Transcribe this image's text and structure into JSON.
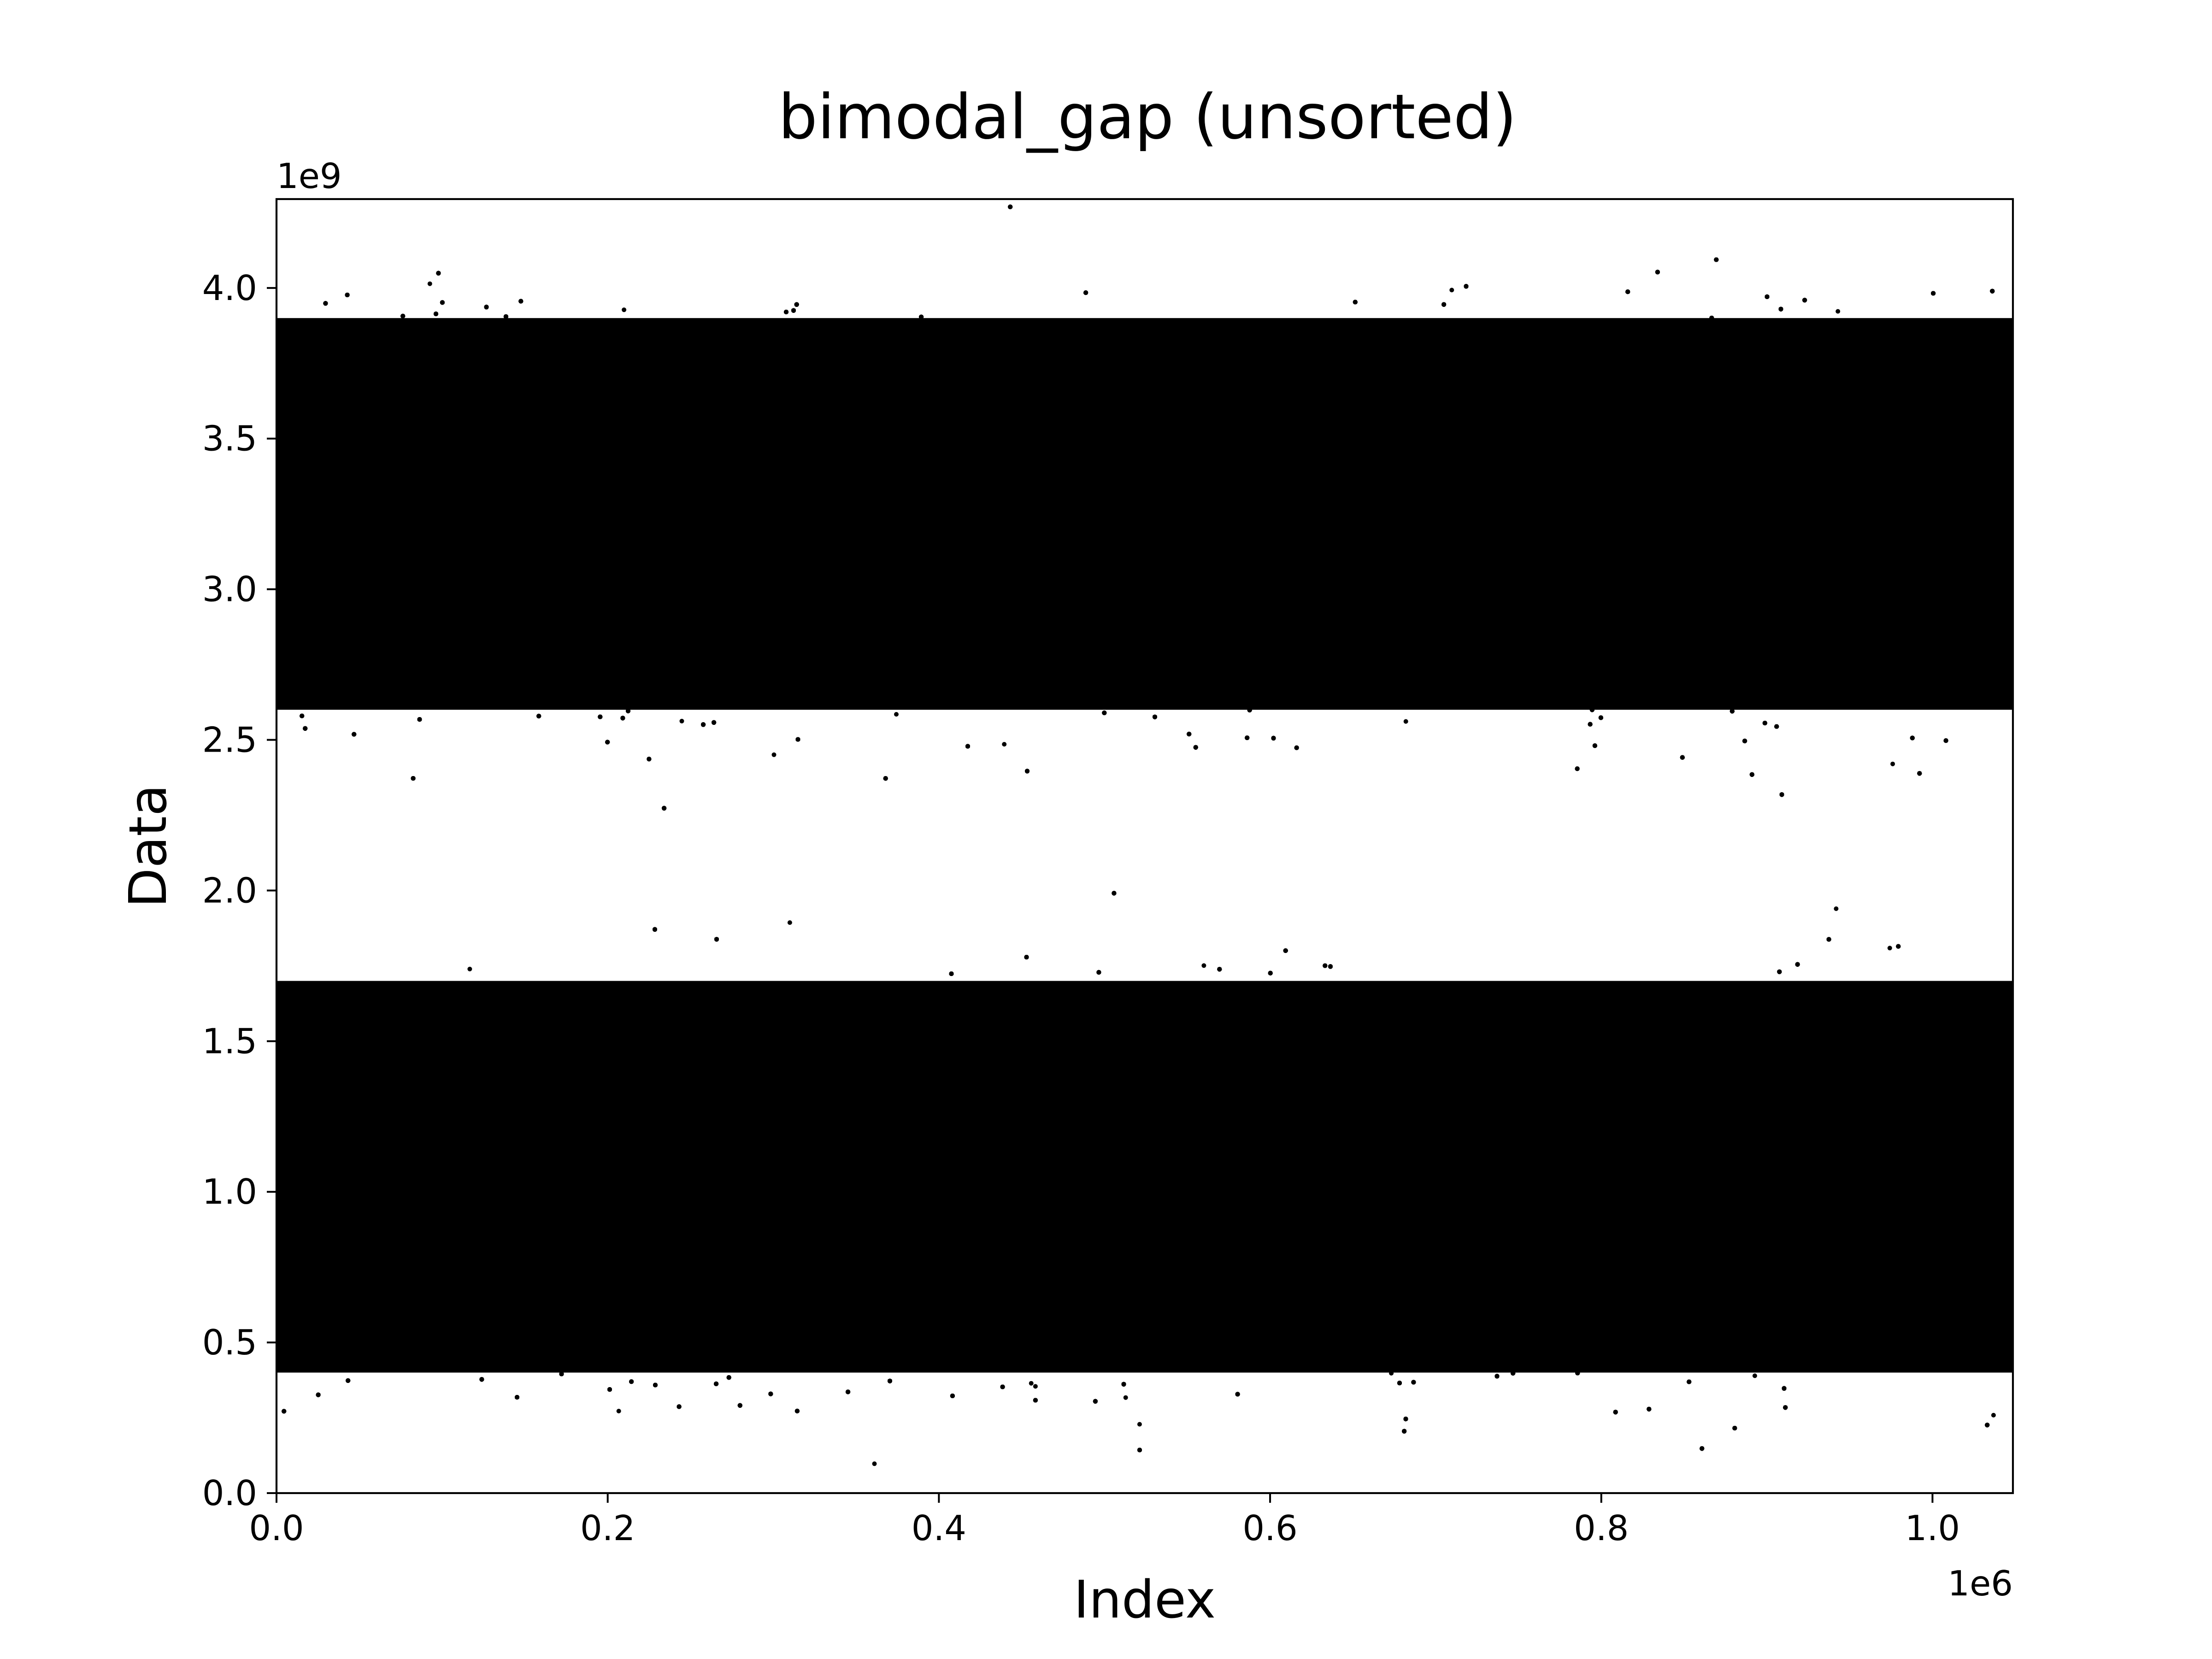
{
  "chart_data": {
    "type": "scatter",
    "title": "bimodal_gap (unsorted)",
    "xlabel": "Index",
    "ylabel": "Data",
    "x_offset_text": "1e6",
    "y_offset_text": "1e9",
    "xlim": [
      0,
      1048576
    ],
    "ylim": [
      0,
      4294967296
    ],
    "xticks": [
      {
        "value": 0,
        "label": "0.0"
      },
      {
        "value": 200000,
        "label": "0.2"
      },
      {
        "value": 400000,
        "label": "0.4"
      },
      {
        "value": 600000,
        "label": "0.6"
      },
      {
        "value": 800000,
        "label": "0.8"
      },
      {
        "value": 1000000,
        "label": "1.0"
      }
    ],
    "yticks": [
      {
        "value": 0,
        "label": "0.0"
      },
      {
        "value": 500000000,
        "label": "0.5"
      },
      {
        "value": 1000000000,
        "label": "1.0"
      },
      {
        "value": 1500000000,
        "label": "1.5"
      },
      {
        "value": 2000000000,
        "label": "2.0"
      },
      {
        "value": 2500000000,
        "label": "2.5"
      },
      {
        "value": 3000000000,
        "label": "3.0"
      },
      {
        "value": 3500000000,
        "label": "3.5"
      },
      {
        "value": 4000000000,
        "label": "4.0"
      }
    ],
    "n_points": 1048576,
    "marker_color": "#000000",
    "grid": false,
    "legend": "none",
    "series": [
      {
        "distribution": "gaussian",
        "mean": 1000000000,
        "std": 300000000,
        "approx_solid_band": [
          400000000,
          1700000000
        ]
      },
      {
        "distribution": "gaussian",
        "mean": 3200000000,
        "std": 300000000,
        "approx_solid_band": [
          2600000000,
          3900000000
        ]
      }
    ],
    "sparse_gap_region": [
      1850000000,
      2450000000
    ]
  }
}
